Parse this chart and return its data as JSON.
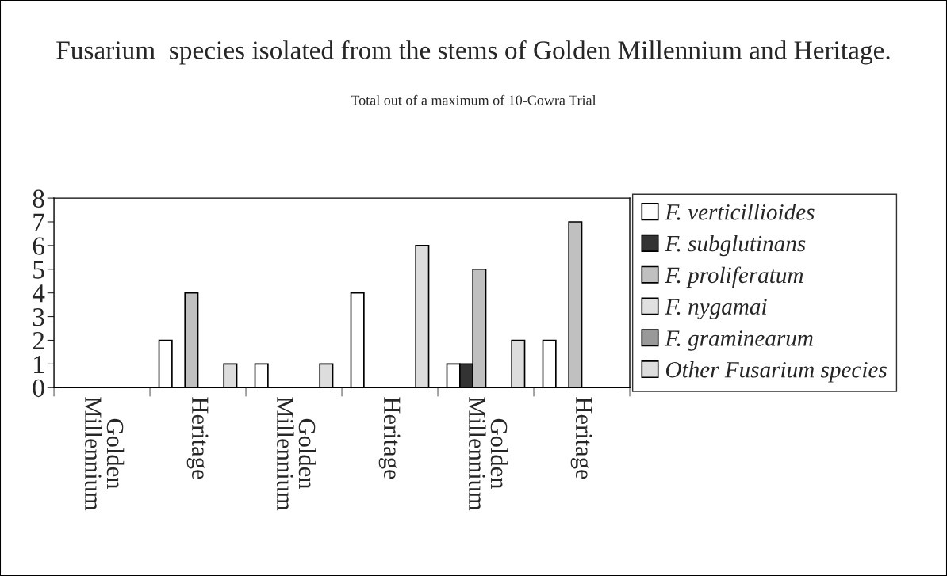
{
  "chart_data": {
    "type": "bar",
    "title": "Fusarium  species isolated from the stems of Golden Millennium and Heritage.",
    "subtitle": "Total out of a maximum of 10-Cowra Trial",
    "categories": [
      "Golden\nMillennium",
      "Heritage",
      "Golden\nMillennium",
      "Heritage",
      "Golden\nMillennium",
      "Heritage"
    ],
    "series": [
      {
        "name": "F. verticillioides",
        "color": "#ffffff",
        "values": [
          0,
          2,
          1,
          4,
          1,
          2
        ]
      },
      {
        "name": "F. subglutinans",
        "color": "#333333",
        "values": [
          0,
          0,
          0,
          0,
          1,
          0
        ]
      },
      {
        "name": "F. proliferatum",
        "color": "#c0c0c0",
        "values": [
          0,
          4,
          0,
          0,
          5,
          7
        ]
      },
      {
        "name": "F. nygamai",
        "color": "#e0e0e0",
        "values": [
          0,
          0,
          0,
          0,
          0,
          0
        ]
      },
      {
        "name": "F. graminearum",
        "color": "#999999",
        "values": [
          0,
          0,
          0,
          0,
          0,
          0
        ]
      },
      {
        "name": "Other Fusarium species",
        "color": "#dddddd",
        "values": [
          0,
          1,
          1,
          6,
          2,
          0
        ]
      }
    ],
    "ylim": [
      0,
      8
    ],
    "yticks": [
      0,
      1,
      2,
      3,
      4,
      5,
      6,
      7,
      8
    ],
    "grid": false,
    "legend": "right"
  }
}
